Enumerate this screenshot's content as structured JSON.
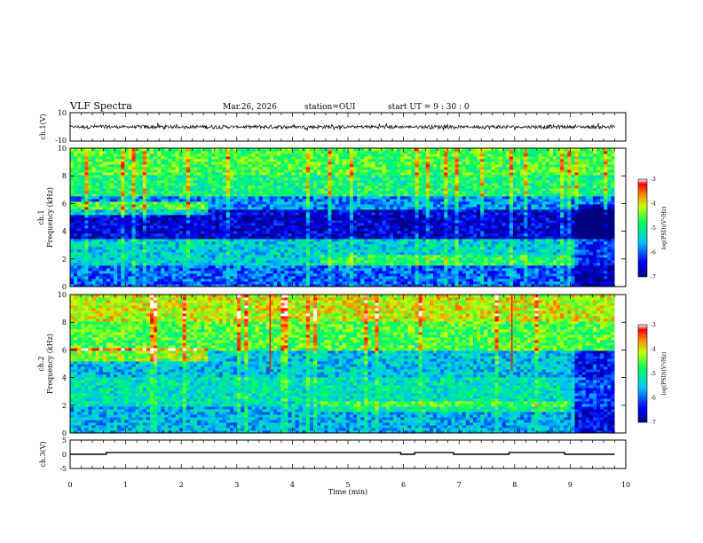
{
  "header": {
    "title": "VLF Spectra",
    "date": "Mar.26, 2026",
    "station": "station=OUI",
    "start": "start UT =  9 : 30 : 0"
  },
  "chart_data": [
    {
      "type": "line",
      "panel": "ch1-waveform",
      "ylabel": "ch.1(V)",
      "ylim": [
        -10,
        10
      ],
      "yticks": [
        "10",
        "-10"
      ],
      "xlim": [
        0,
        10
      ],
      "note": "noisy waveform centered at 0 V with amplitude about ±1.5 V, ends at ~9.8 min"
    },
    {
      "type": "heatmap",
      "panel": "ch1-spectrogram",
      "ylabel": "ch.1 Frequency (kHz)",
      "ylim": [
        0,
        10
      ],
      "yticks": [
        "0",
        "2",
        "4",
        "6",
        "8",
        "10"
      ],
      "xlim": [
        0,
        10
      ],
      "colorbar": {
        "label": "log(PSD)(V²/Hz)",
        "range": [
          -7,
          -3
        ],
        "ticks": [
          "-3",
          "-4",
          "-5",
          "-6",
          "-7"
        ]
      },
      "bands": [
        {
          "f_lo": 8.0,
          "f_hi": 10.0,
          "level": -4.6
        },
        {
          "f_lo": 6.5,
          "f_hi": 8.0,
          "level": -4.9
        },
        {
          "f_lo": 5.5,
          "f_hi": 6.5,
          "level": -5.8
        },
        {
          "f_lo": 3.5,
          "f_hi": 5.5,
          "level": -6.6
        },
        {
          "f_lo": 1.5,
          "f_hi": 3.5,
          "level": -5.4
        },
        {
          "f_lo": 0.0,
          "f_hi": 1.5,
          "level": -6.0
        }
      ],
      "data_end_min": 9.8
    },
    {
      "type": "heatmap",
      "panel": "ch2-spectrogram",
      "ylabel": "ch.2 Frequency (kHz)",
      "ylim": [
        0,
        10
      ],
      "yticks": [
        "0",
        "2",
        "4",
        "6",
        "8",
        "10"
      ],
      "xlim": [
        0,
        10
      ],
      "colorbar": {
        "label": "log(PSD)(V²/Hz)",
        "range": [
          -7,
          -3
        ],
        "ticks": [
          "-3",
          "-4",
          "-5",
          "-6",
          "-7"
        ]
      },
      "bands": [
        {
          "f_lo": 8.0,
          "f_hi": 10.0,
          "level": -4.1
        },
        {
          "f_lo": 6.0,
          "f_hi": 8.0,
          "level": -4.6
        },
        {
          "f_lo": 4.0,
          "f_hi": 6.0,
          "level": -5.5
        },
        {
          "f_lo": 2.0,
          "f_hi": 4.0,
          "level": -5.2
        },
        {
          "f_lo": 0.0,
          "f_hi": 2.0,
          "level": -5.6
        }
      ],
      "data_end_min": 9.8
    },
    {
      "type": "line",
      "panel": "ch3-signal",
      "ylabel": "ch.3(V)",
      "ylim": [
        -5,
        5
      ],
      "yticks": [
        "5",
        "0",
        "-5"
      ],
      "xlim": [
        0,
        10
      ],
      "xlabel": "Time (min)",
      "xticks": [
        "0",
        "1",
        "2",
        "3",
        "4",
        "5",
        "6",
        "7",
        "8",
        "9",
        "10"
      ],
      "baseline": 0,
      "pulses": [
        [
          0.65,
          5.95
        ],
        [
          6.2,
          6.9
        ],
        [
          7.9,
          8.9
        ]
      ],
      "pulse_level": 0.6,
      "data_end_min": 9.8
    }
  ]
}
